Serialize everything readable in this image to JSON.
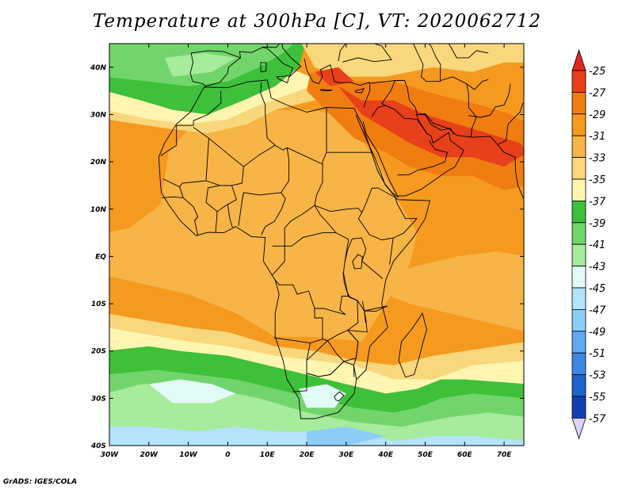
{
  "title": "Temperature at 300hPa [C], VT: 2020062712",
  "credit": "GrADS: IGES/COLA",
  "map": {
    "lon_range": [
      -30,
      75
    ],
    "lat_range": [
      -40,
      45
    ],
    "lon_ticks": [
      {
        "lon": -30,
        "label": "30W"
      },
      {
        "lon": -20,
        "label": "20W"
      },
      {
        "lon": -10,
        "label": "10W"
      },
      {
        "lon": 0,
        "label": "0"
      },
      {
        "lon": 10,
        "label": "10E"
      },
      {
        "lon": 20,
        "label": "20E"
      },
      {
        "lon": 30,
        "label": "30E"
      },
      {
        "lon": 40,
        "label": "40E"
      },
      {
        "lon": 50,
        "label": "50E"
      },
      {
        "lon": 60,
        "label": "60E"
      },
      {
        "lon": 70,
        "label": "70E"
      }
    ],
    "lat_ticks": [
      {
        "lat": 40,
        "label": "40N"
      },
      {
        "lat": 30,
        "label": "30N"
      },
      {
        "lat": 20,
        "label": "20N"
      },
      {
        "lat": 10,
        "label": "10N"
      },
      {
        "lat": 0,
        "label": "EQ"
      },
      {
        "lat": -10,
        "label": "10S"
      },
      {
        "lat": -20,
        "label": "20S"
      },
      {
        "lat": -30,
        "label": "30S"
      },
      {
        "lat": -40,
        "label": "40S"
      }
    ]
  },
  "colorbar": {
    "levels": [
      "-25",
      "-27",
      "-29",
      "-31",
      "-33",
      "-35",
      "-37",
      "-39",
      "-41",
      "-43",
      "-45",
      "-47",
      "-49",
      "-51",
      "-53",
      "-55",
      "-57"
    ],
    "colors": [
      "#e8401a",
      "#f07d10",
      "#f59a1e",
      "#f7b447",
      "#f9d77c",
      "#fdf5b0",
      "#3ec03a",
      "#72d56b",
      "#a7eb9d",
      "#e3fbf6",
      "#b3e2fa",
      "#8ccdf8",
      "#5fa9f2",
      "#3d88e3",
      "#1e62cd",
      "#0f3fb0",
      "#091a80"
    ],
    "top_color": "#e3261b",
    "bottom_color": "#dcd3fa"
  },
  "field_colors": {
    "c25": "#e8401a",
    "c27": "#f07d10",
    "c29": "#f59a1e",
    "c31": "#f7b447",
    "c33": "#f9d77c",
    "c35": "#fdf5b0",
    "c37": "#3ec03a",
    "c39": "#72d56b",
    "c41": "#a7eb9d",
    "c43": "#e3fbf6",
    "c45": "#b3e2fa",
    "c47": "#8ccdf8"
  }
}
